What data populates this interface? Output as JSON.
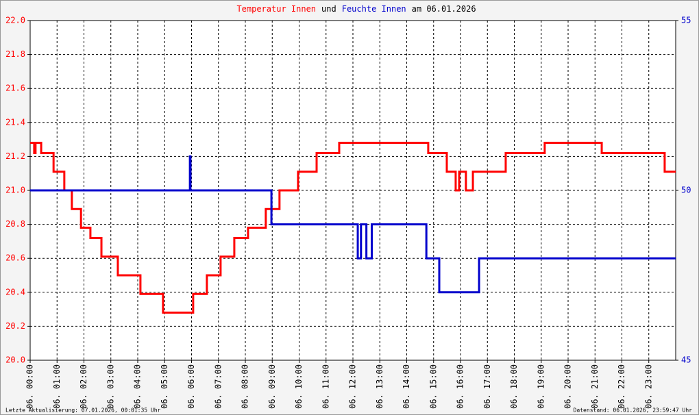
{
  "chart_data": {
    "type": "line",
    "title_parts": [
      {
        "text": "Temperatur Innen",
        "color": "#ff0000"
      },
      {
        "text": "und",
        "color": "#000000"
      },
      {
        "text": "Feuchte Innen",
        "color": "#0000cc"
      },
      {
        "text": "am 06.01.2026",
        "color": "#000000"
      }
    ],
    "footer_left": "Letzte Aktualisierung: 07.01.2026, 00:01:35 Uhr",
    "footer_right": "Datenstand: 06.01.2026, 23:59:47 Uhr",
    "xlim": [
      0,
      24
    ],
    "xticks": [
      {
        "value": 0,
        "label": "06. 00:00"
      },
      {
        "value": 1,
        "label": "06. 01:00"
      },
      {
        "value": 2,
        "label": "06. 02:00"
      },
      {
        "value": 3,
        "label": "06. 03:00"
      },
      {
        "value": 4,
        "label": "06. 04:00"
      },
      {
        "value": 5,
        "label": "06. 05:00"
      },
      {
        "value": 6,
        "label": "06. 06:00"
      },
      {
        "value": 7,
        "label": "06. 07:00"
      },
      {
        "value": 8,
        "label": "06. 08:00"
      },
      {
        "value": 9,
        "label": "06. 09:00"
      },
      {
        "value": 10,
        "label": "06. 10:00"
      },
      {
        "value": 11,
        "label": "06. 11:00"
      },
      {
        "value": 12,
        "label": "06. 12:00"
      },
      {
        "value": 13,
        "label": "06. 13:00"
      },
      {
        "value": 14,
        "label": "06. 14:00"
      },
      {
        "value": 15,
        "label": "06. 15:00"
      },
      {
        "value": 16,
        "label": "06. 16:00"
      },
      {
        "value": 17,
        "label": "06. 17:00"
      },
      {
        "value": 18,
        "label": "06. 18:00"
      },
      {
        "value": 19,
        "label": "06. 19:00"
      },
      {
        "value": 20,
        "label": "06. 20:00"
      },
      {
        "value": 21,
        "label": "06. 21:00"
      },
      {
        "value": 22,
        "label": "06. 22:00"
      },
      {
        "value": 23,
        "label": "06. 23:00"
      }
    ],
    "ylim": [
      20,
      22
    ],
    "yticks": [
      {
        "value": 20,
        "label": "20.0"
      },
      20.2,
      20.4,
      20.6,
      20.8,
      {
        "value": 21,
        "label": "21.0"
      },
      21.2,
      21.4,
      21.6,
      21.8,
      {
        "value": 22,
        "label": "22.0"
      }
    ],
    "y_color": "#ff0000",
    "y2lim": [
      45,
      55
    ],
    "y2ticks": [
      45,
      50,
      55
    ],
    "y2_color": "#0000cc",
    "grid": true,
    "series": [
      {
        "name": "Temperatur Innen",
        "color": "#ff0000",
        "x": [
          0,
          0.15,
          0.15,
          0.2,
          0.2,
          0.41,
          0.41,
          0.87,
          0.87,
          1.27,
          1.27,
          1.55,
          1.55,
          1.89,
          1.89,
          2.24,
          2.24,
          2.65,
          2.65,
          3.26,
          3.26,
          4.1,
          4.1,
          4.94,
          4.94,
          6.06,
          6.06,
          6.57,
          6.57,
          7.08,
          7.08,
          7.59,
          7.59,
          8.1,
          8.1,
          8.76,
          8.76,
          9.27,
          9.27,
          9.96,
          9.96,
          10.65,
          10.65,
          11.49,
          11.49,
          14.8,
          14.8,
          15.49,
          15.49,
          15.82,
          15.82,
          15.95,
          15.95,
          16.2,
          16.2,
          16.46,
          16.46,
          17.68,
          17.68,
          19.13,
          19.13,
          21.25,
          21.25,
          23.59,
          23.59,
          24
        ],
        "values": [
          21.28,
          21.28,
          21.22,
          21.22,
          21.28,
          21.28,
          21.22,
          21.22,
          21.11,
          21.11,
          21.0,
          21.0,
          20.89,
          20.89,
          20.78,
          20.78,
          20.72,
          20.72,
          20.61,
          20.61,
          20.5,
          20.5,
          20.39,
          20.39,
          20.28,
          20.28,
          20.39,
          20.39,
          20.5,
          20.5,
          20.61,
          20.61,
          20.72,
          20.72,
          20.78,
          20.78,
          20.89,
          20.89,
          21.0,
          21.0,
          21.11,
          21.11,
          21.22,
          21.22,
          21.28,
          21.28,
          21.22,
          21.22,
          21.11,
          21.11,
          21.0,
          21.0,
          21.11,
          21.11,
          21.0,
          21.0,
          21.11,
          21.11,
          21.22,
          21.22,
          21.28,
          21.28,
          21.22,
          21.22,
          21.11,
          21.11
        ]
      },
      {
        "name": "Feuchte Innen",
        "color": "#0000cc",
        "axis": "y2",
        "x": [
          0,
          5.94,
          5.94,
          5.96,
          5.96,
          8.97,
          8.97,
          12.18,
          12.18,
          12.3,
          12.3,
          12.5,
          12.5,
          12.7,
          12.7,
          14.73,
          14.73,
          15.21,
          15.21,
          16.69,
          16.69,
          24
        ],
        "values": [
          50,
          50,
          51,
          51,
          50,
          50,
          49,
          49,
          48,
          48,
          49,
          49,
          48,
          48,
          49,
          49,
          48,
          48,
          47,
          47,
          48,
          48
        ]
      }
    ]
  }
}
